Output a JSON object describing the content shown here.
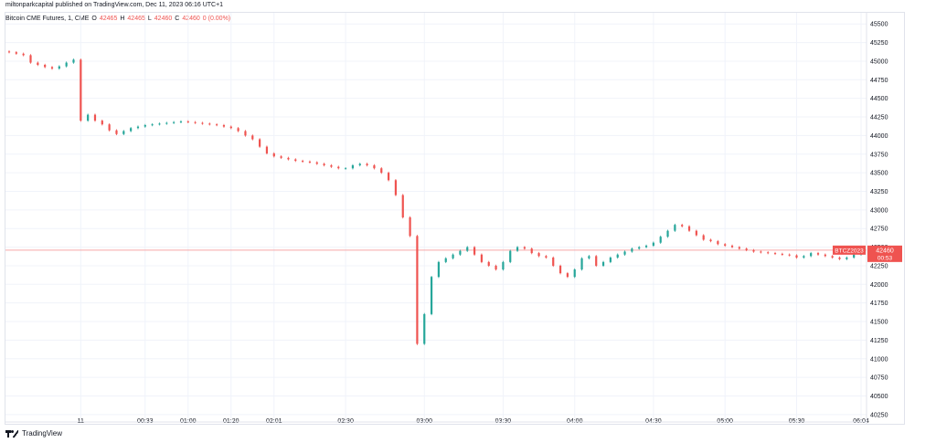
{
  "header": {
    "publisher": "miltonparkcapital published on TradingView.com, Dec 11, 2023 06:16 UTC+1"
  },
  "legend": {
    "symbol": "Bitcoin CME Futures, 1, CME",
    "open_label": "O",
    "open": "42465",
    "high_label": "H",
    "high": "42465",
    "low_label": "L",
    "low": "42460",
    "close_label": "C",
    "close": "42460",
    "change": "0 (0.00%)"
  },
  "price_label": {
    "ticker": "BTCZ2023",
    "price": "42460",
    "countdown": "00:53"
  },
  "footer": {
    "brand": "TradingView"
  },
  "colors": {
    "up": "#26a69a",
    "down": "#ef5350",
    "grid": "#f0f3fa",
    "price_line": "#f7a8a6"
  },
  "chart_data": {
    "type": "line",
    "title": "",
    "xlabel": "",
    "ylabel": "",
    "ylim": [
      40150,
      45650
    ],
    "y_ticks": [
      40250,
      40500,
      40750,
      41000,
      41250,
      41500,
      41750,
      42000,
      42250,
      42500,
      42750,
      43000,
      43250,
      43500,
      43750,
      44000,
      44250,
      44500,
      44750,
      45000,
      45250,
      45500
    ],
    "x_tick_labels": [
      "11",
      "00:33",
      "01:00",
      "01:20",
      "02:01",
      "02:30",
      "03:00",
      "03:30",
      "04:00",
      "04:30",
      "05:00",
      "05:30",
      "06:04"
    ],
    "x_tick_index": [
      10,
      19,
      25,
      31,
      37,
      47,
      58,
      69,
      79,
      90,
      100,
      110,
      119
    ],
    "last_price": 42460,
    "series": [
      {
        "values": [
          45120,
          45100,
          45080,
          44980,
          44950,
          44920,
          44900,
          44930,
          44980,
          45020,
          44200,
          44280,
          44200,
          44150,
          44070,
          44020,
          44060,
          44100,
          44120,
          44140,
          44150,
          44160,
          44170,
          44180,
          44190,
          44180,
          44170,
          44160,
          44150,
          44140,
          44120,
          44100,
          44060,
          44000,
          43950,
          43850,
          43760,
          43720,
          43700,
          43680,
          43660,
          43650,
          43640,
          43620,
          43600,
          43580,
          43560,
          43560,
          43600,
          43620,
          43600,
          43560,
          43500,
          43400,
          43200,
          42900,
          42650,
          41200,
          41600,
          42100,
          42300,
          42350,
          42400,
          42450,
          42500,
          42400,
          42300,
          42250,
          42200,
          42300,
          42450,
          42500,
          42480,
          42420,
          42380,
          42360,
          42250,
          42150,
          42100,
          42200,
          42350,
          42380,
          42250,
          42300,
          42360,
          42400,
          42440,
          42480,
          42500,
          42520,
          42560,
          42640,
          42720,
          42800,
          42780,
          42720,
          42660,
          42600,
          42580,
          42540,
          42520,
          42500,
          42480,
          42460,
          42440,
          42430,
          42420,
          42410,
          42400,
          42390,
          42360,
          42380,
          42420,
          42400,
          42380,
          42360,
          42340,
          42360,
          42400,
          42460
        ]
      }
    ]
  }
}
